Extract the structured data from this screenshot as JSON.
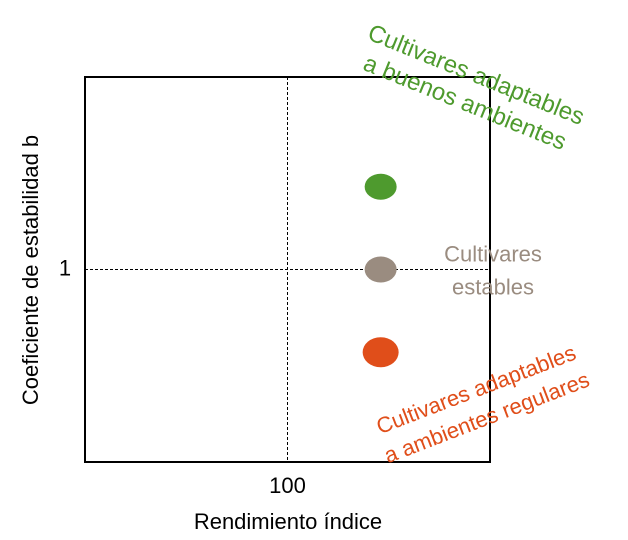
{
  "chart_data": {
    "type": "scatter",
    "x_label": "Rendimiento índice",
    "y_label": "Coeficiente de estabilidad b",
    "xlim": [
      50,
      150
    ],
    "ylim": [
      0,
      2
    ],
    "xticks": [
      100
    ],
    "yticks": [
      1
    ],
    "grid": true,
    "series": [
      {
        "color": "#4e9a2e",
        "x": [
          123
        ],
        "values": [
          1.43
        ]
      },
      {
        "color": "#9a8c80",
        "x": [
          123
        ],
        "values": [
          1
        ]
      },
      {
        "color": "#e04e1a",
        "x": [
          123
        ],
        "values": [
          0.57
        ]
      }
    ],
    "annotations": [
      {
        "lines": [
          "Cultivares adaptables",
          "a buenos ambientes"
        ],
        "color": "#4e9a2e"
      },
      {
        "lines": [
          "Cultivares",
          "estables"
        ],
        "color": "#9a8c80"
      },
      {
        "lines": [
          "Cultivares adaptables",
          "a ambientes regulares"
        ],
        "color": "#e04e1a"
      }
    ]
  }
}
